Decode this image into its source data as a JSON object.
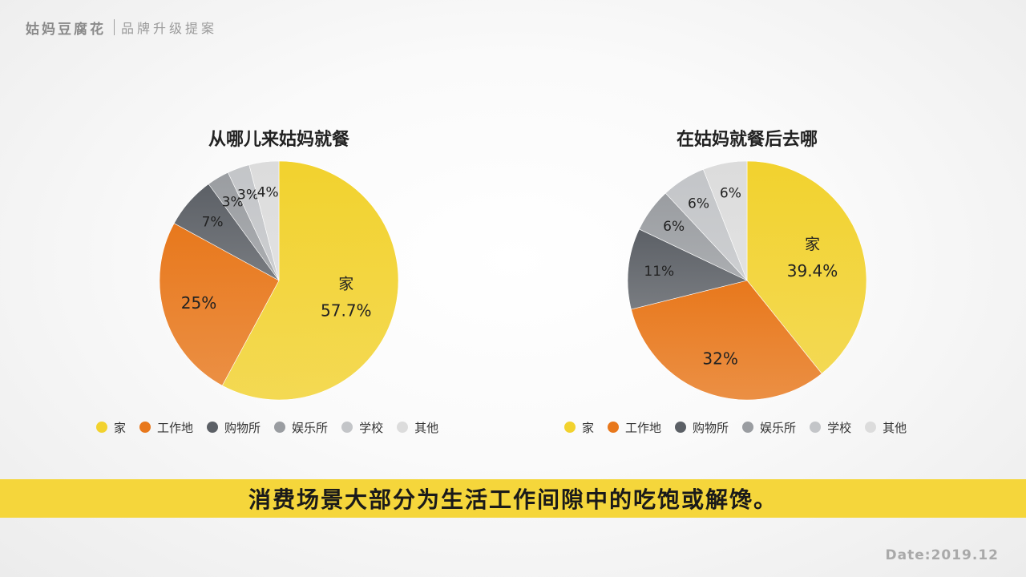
{
  "header": {
    "brand": "姑妈豆腐花",
    "subtitle": "品牌升级提案"
  },
  "colors": {
    "home": "#f2d22e",
    "worksite": "#e8781c",
    "shopping": "#5c6066",
    "entertainment": "#9a9da1",
    "school": "#c3c5c8",
    "other": "#dcdcdc",
    "banner": "#f5d63b"
  },
  "legend_items": [
    {
      "label": "家",
      "color": "#f2d22e"
    },
    {
      "label": "工作地",
      "color": "#e8781c"
    },
    {
      "label": "购物所",
      "color": "#5c6066"
    },
    {
      "label": "娱乐所",
      "color": "#9a9da1"
    },
    {
      "label": "学校",
      "color": "#c3c5c8"
    },
    {
      "label": "其他",
      "color": "#dcdcdc"
    }
  ],
  "chart_data": [
    {
      "type": "pie",
      "title": "从哪儿来姑妈就餐",
      "categories": [
        "家",
        "工作地",
        "购物所",
        "娱乐所",
        "学校",
        "其他"
      ],
      "values": [
        57.7,
        25,
        7,
        3,
        3,
        4
      ],
      "data_labels": [
        "57.7%",
        "25%",
        "7%",
        "3%",
        "3%",
        "4%"
      ],
      "legend_position": "bottom"
    },
    {
      "type": "pie",
      "title": "在姑妈就餐后去哪",
      "categories": [
        "家",
        "工作地",
        "购物所",
        "娱乐所",
        "学校",
        "其他"
      ],
      "values": [
        39.4,
        32,
        11,
        6,
        6,
        6
      ],
      "data_labels": [
        "39.4%",
        "32%",
        "11%",
        "6%",
        "6%",
        "6%"
      ],
      "legend_position": "bottom"
    }
  ],
  "banner": {
    "text": "消费场景大部分为生活工作间隙中的吃饱或解馋。"
  },
  "footer": {
    "date": "Date:2019.12"
  }
}
